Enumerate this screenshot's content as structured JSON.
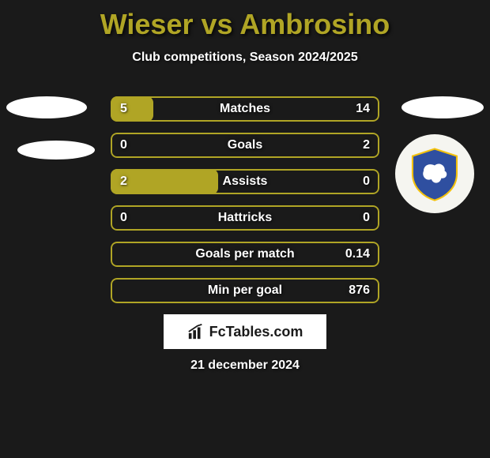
{
  "title": {
    "player1": "Wieser",
    "vs": "vs",
    "player2": "Ambrosino",
    "color": "#b0a525"
  },
  "subtitle": "Club competitions, Season 2024/2025",
  "accent_color": "#b0a525",
  "outline_color": "#b0a525",
  "background_color": "#1a1a1a",
  "rows": [
    {
      "label": "Matches",
      "left": "5",
      "right": "14",
      "fill_width_pct": 16,
      "fill_side": "left"
    },
    {
      "label": "Goals",
      "left": "0",
      "right": "2",
      "fill_width_pct": 0,
      "fill_side": "left"
    },
    {
      "label": "Assists",
      "left": "2",
      "right": "0",
      "fill_width_pct": 40,
      "fill_side": "left"
    },
    {
      "label": "Hattricks",
      "left": "0",
      "right": "0",
      "fill_width_pct": 0,
      "fill_side": "left"
    },
    {
      "label": "Goals per match",
      "left": "",
      "right": "0.14",
      "fill_width_pct": 0,
      "fill_side": "left"
    },
    {
      "label": "Min per goal",
      "left": "",
      "right": "876",
      "fill_width_pct": 0,
      "fill_side": "left"
    }
  ],
  "badge": {
    "bg": "#f5f5f0",
    "shield_fill": "#2f4fa0",
    "shield_stroke": "#f4c20d",
    "creature_fill": "#ffffff"
  },
  "footer": {
    "brand_prefix": "Fc",
    "brand_rest": "Tables.com"
  },
  "date": "21 december 2024"
}
